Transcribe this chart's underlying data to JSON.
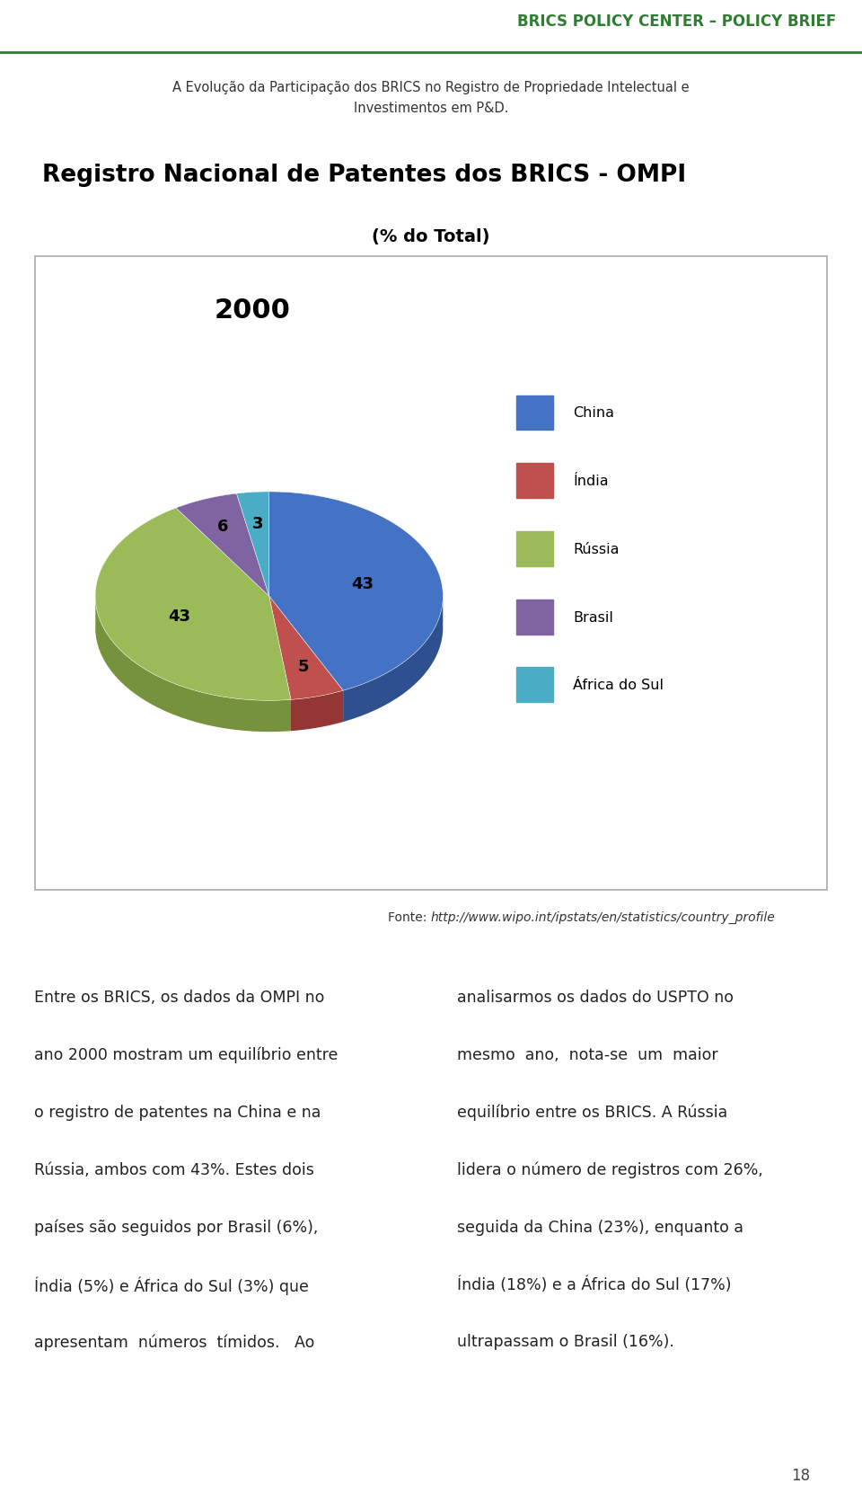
{
  "header_title": "BRICS POLICY CENTER – POLICY BRIEF",
  "header_subtitle": "A Evolução da Participação dos BRICS no Registro de Propriedade Intelectual e\nInvestimentos em P&D.",
  "chart_main_title": "Registro Nacional de Patentes dos BRICS - OMPI",
  "chart_subtitle": "(% do Total)",
  "pie_title": "2000",
  "pie_values": [
    43,
    5,
    43,
    6,
    3
  ],
  "pie_colors": [
    "#4472C4",
    "#C0504D",
    "#9BBB59",
    "#8064A2",
    "#4BACC6"
  ],
  "pie_dark_colors": [
    "#2E508E",
    "#943634",
    "#76923C",
    "#5F497A",
    "#31849B"
  ],
  "legend_labels": [
    "China",
    "Índia",
    "Rússia",
    "Brasil",
    "África do Sul"
  ],
  "source_text_normal": "Fonte: ",
  "source_text_italic": "http://www.wipo.int/ipstats/en/statistics/country_profile",
  "body_left_lines": [
    "Entre os BRICS, os dados da OMPI no",
    "ano 2000 mostram um equilíbrio entre",
    "o registro de patentes na China e na",
    "Rússia, ambos com 43%. Estes dois",
    "países são seguidos por Brasil (6%),",
    "Índia (5%) e África do Sul (3%) que",
    "apresentam  números  tímidos.   Ao"
  ],
  "body_right_lines": [
    "analisarmos os dados do USPTO no",
    "mesmo  ano,  nota-se  um  maior",
    "equilíbrio entre os BRICS. A Rússia",
    "lidera o número de registros com 26%,",
    "seguida da China (23%), enquanto a",
    "Índia (18%) e a África do Sul (17%)",
    "ultrapassam o Brasil (16%)."
  ],
  "page_number": "18",
  "header_color": "#2E7D32",
  "background_color": "#FFFFFF"
}
